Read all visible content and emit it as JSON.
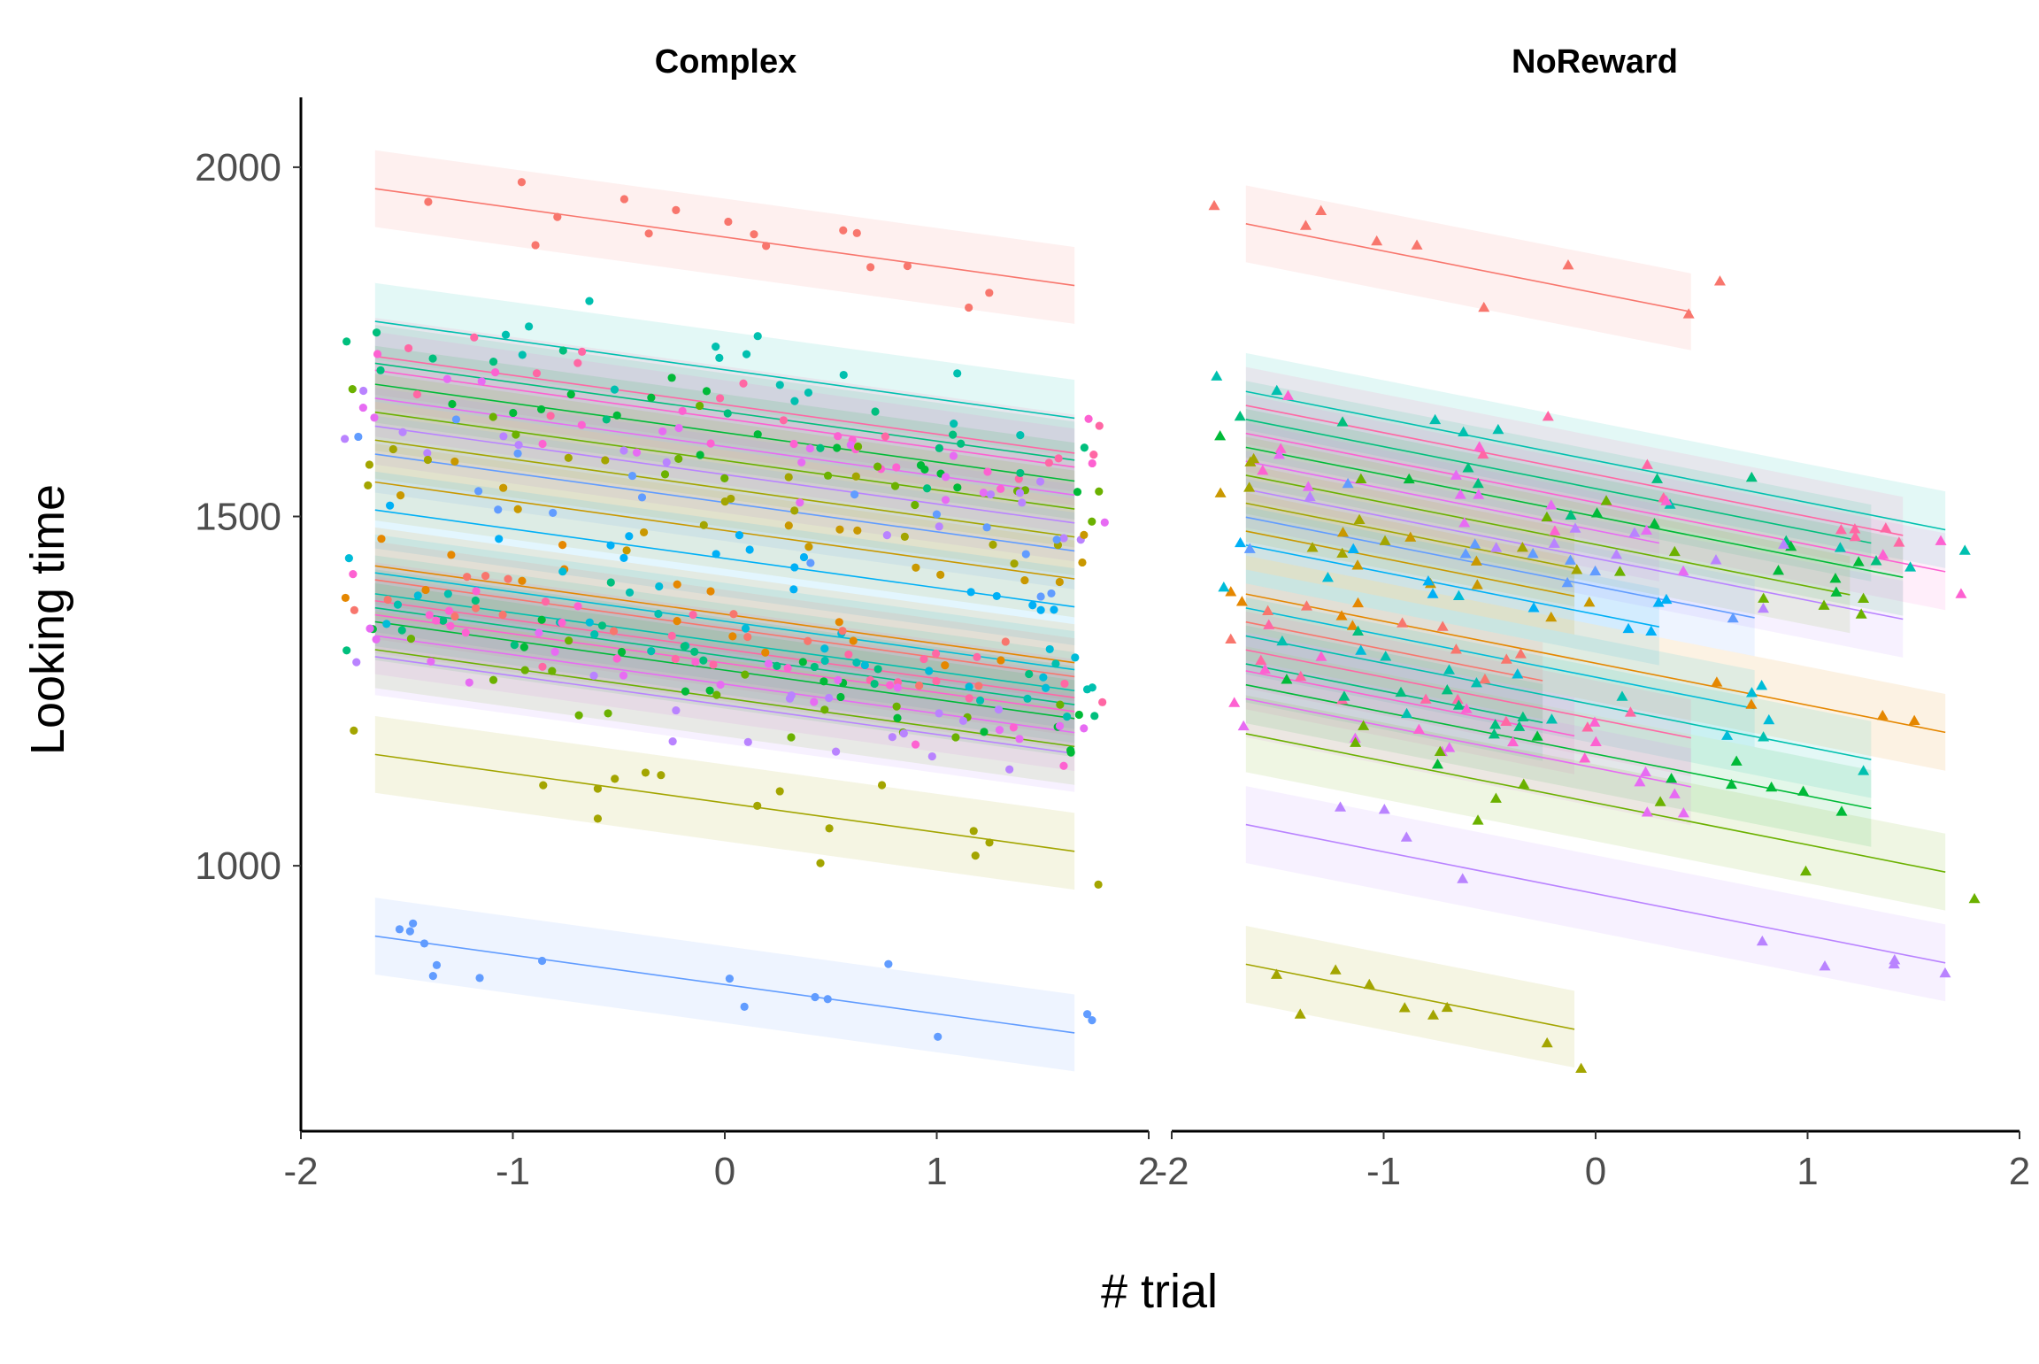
{
  "chart_data": {
    "type": "scatter",
    "facet_variable": "condition",
    "facets": [
      {
        "title": "Complex",
        "marker": "circle",
        "xlim": [
          -2,
          2
        ],
        "x_ticks": [
          "-2",
          "-1",
          "0",
          "1",
          "2"
        ],
        "x_trial_range": [
          -1.65,
          1.65
        ],
        "line_intercepts": [
          1900,
          1710,
          1660,
          1650,
          1640,
          1620,
          1600,
          1580,
          1560,
          1540,
          1520,
          1480,
          1440,
          1360,
          1350,
          1340,
          1320,
          1310,
          1300,
          1290,
          1280,
          1260,
          1240,
          1230,
          1090,
          830
        ],
        "slope": -42
      },
      {
        "title": "NoReward",
        "marker": "triangle",
        "xlim": [
          -2,
          2
        ],
        "x_ticks": [
          "-2",
          "-1",
          "0",
          "1",
          "2"
        ],
        "x_trial_range": [
          -1.65,
          1.65
        ],
        "line_intercepts": [
          1820,
          1580,
          1560,
          1540,
          1520,
          1500,
          1480,
          1460,
          1440,
          1420,
          1400,
          1380,
          1360,
          1290,
          1270,
          1250,
          1230,
          1210,
          1190,
          1180,
          1160,
          1140,
          1090,
          960,
          760
        ],
        "slope": -60
      }
    ],
    "ylabel": "Looking time",
    "xlabel": "# trial",
    "ylim": [
      620,
      2100
    ],
    "y_ticks": [
      "1000",
      "1500",
      "2000"
    ],
    "grid": false,
    "legend": "none",
    "palette": [
      "#F8766D",
      "#E58700",
      "#C99800",
      "#A3A500",
      "#6BB100",
      "#00BA38",
      "#00BF7D",
      "#00C0AF",
      "#00BCD8",
      "#00B0F6",
      "#619CFF",
      "#B983FF",
      "#E76BF3",
      "#FD61D1",
      "#FF67A4"
    ]
  }
}
